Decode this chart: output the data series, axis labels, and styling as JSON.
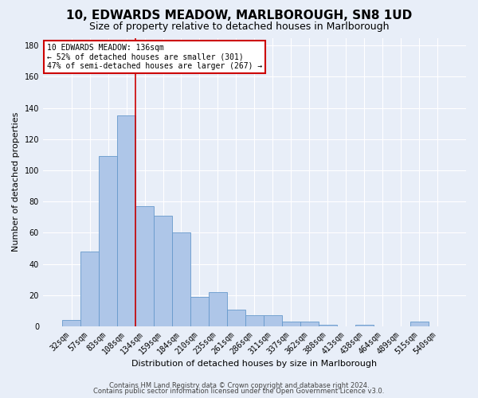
{
  "title": "10, EDWARDS MEADOW, MARLBOROUGH, SN8 1UD",
  "subtitle": "Size of property relative to detached houses in Marlborough",
  "xlabel": "Distribution of detached houses by size in Marlborough",
  "ylabel": "Number of detached properties",
  "categories": [
    "32sqm",
    "57sqm",
    "83sqm",
    "108sqm",
    "134sqm",
    "159sqm",
    "184sqm",
    "210sqm",
    "235sqm",
    "261sqm",
    "286sqm",
    "311sqm",
    "337sqm",
    "362sqm",
    "388sqm",
    "413sqm",
    "438sqm",
    "464sqm",
    "489sqm",
    "515sqm",
    "540sqm"
  ],
  "values": [
    4,
    48,
    109,
    135,
    77,
    71,
    60,
    19,
    22,
    11,
    7,
    7,
    3,
    3,
    1,
    0,
    1,
    0,
    0,
    3,
    0
  ],
  "bar_color": "#aec6e8",
  "bar_edge_color": "#6699cc",
  "vline_color": "#cc0000",
  "vline_x": 3.5,
  "ylim": [
    0,
    185
  ],
  "annotation_text": "10 EDWARDS MEADOW: 136sqm\n← 52% of detached houses are smaller (301)\n47% of semi-detached houses are larger (267) →",
  "annotation_box_facecolor": "#ffffff",
  "annotation_box_edgecolor": "#cc0000",
  "footer_line1": "Contains HM Land Registry data © Crown copyright and database right 2024.",
  "footer_line2": "Contains public sector information licensed under the Open Government Licence v3.0.",
  "background_color": "#e8eef8",
  "plot_background_color": "#e8eef8",
  "grid_color": "#ffffff",
  "title_fontsize": 11,
  "subtitle_fontsize": 9,
  "xlabel_fontsize": 8,
  "ylabel_fontsize": 8,
  "tick_fontsize": 7,
  "footer_fontsize": 6,
  "annot_fontsize": 7
}
